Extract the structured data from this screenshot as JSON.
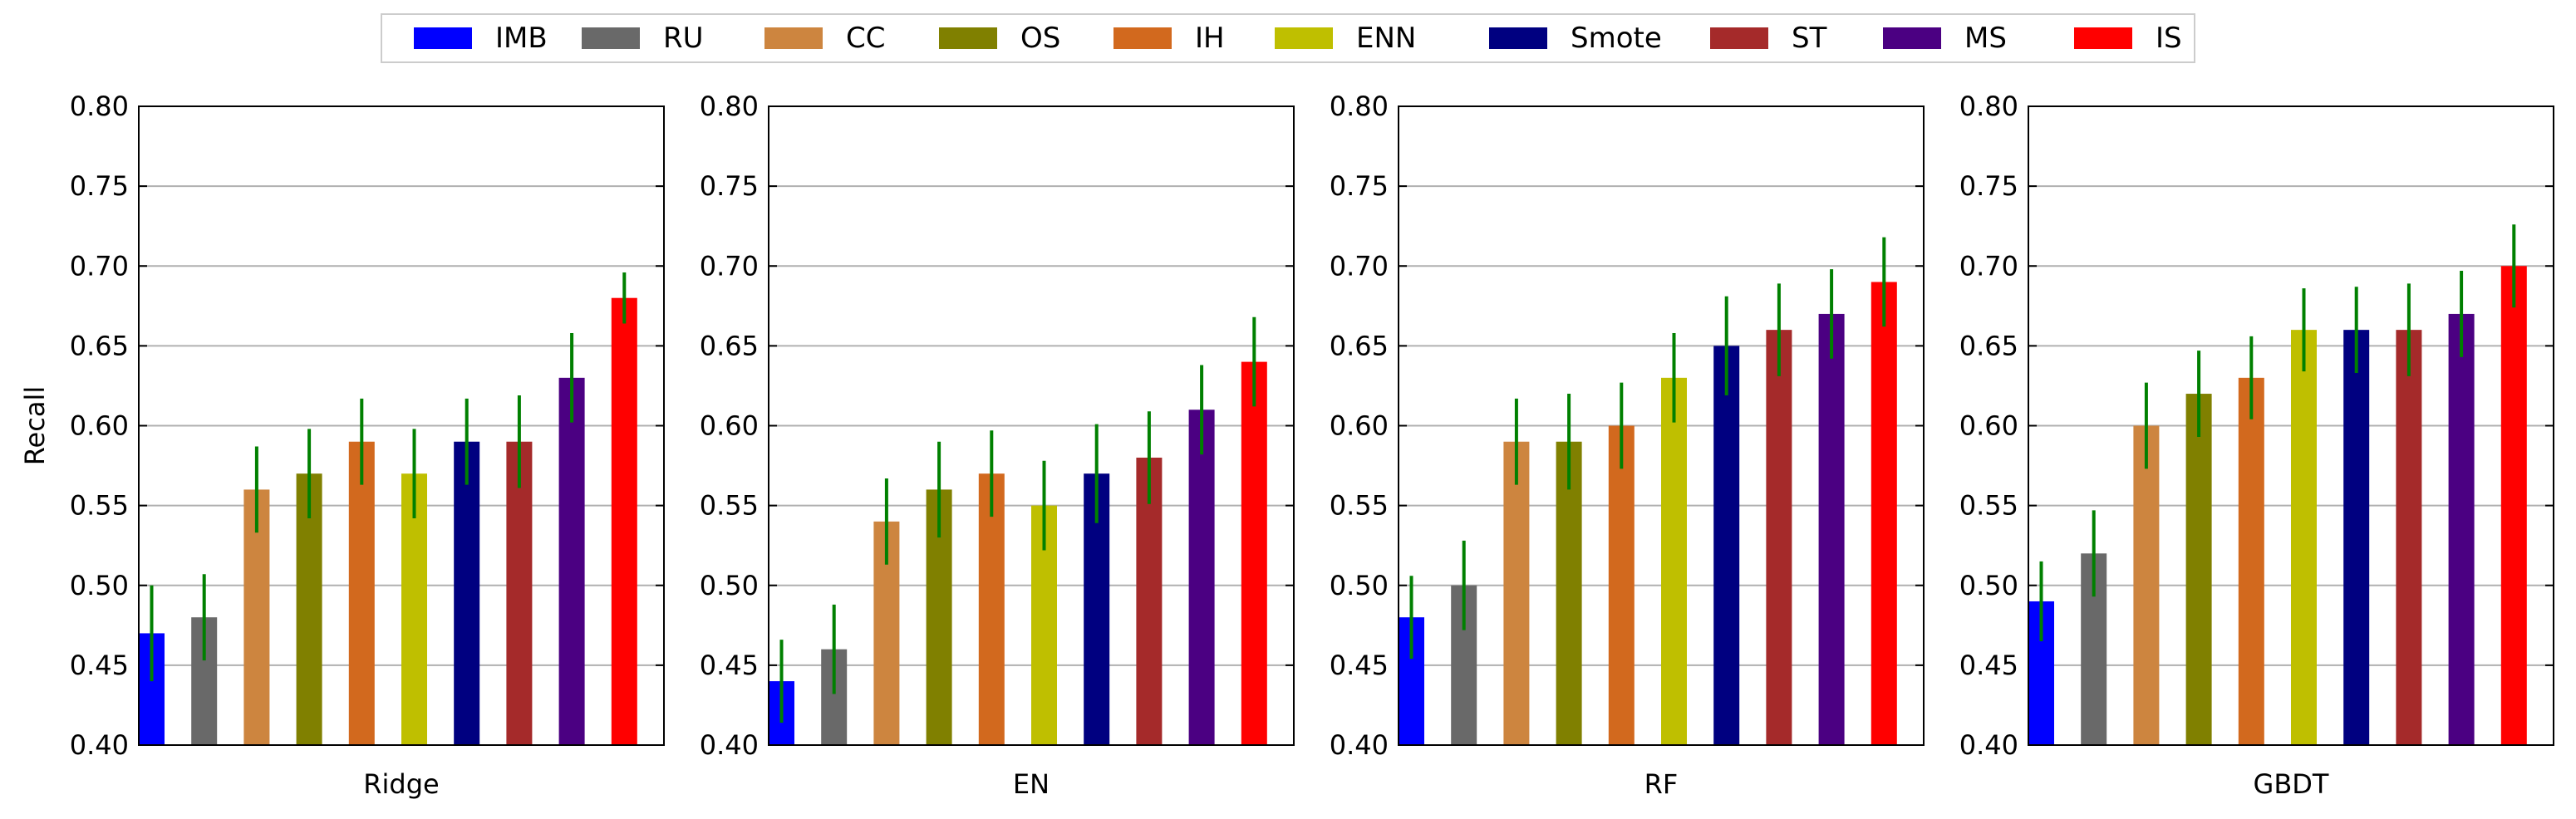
{
  "chart_data": [
    {
      "type": "bar",
      "xlabel": "Ridge",
      "ylabel": "Recall",
      "ylim": [
        0.4,
        0.8
      ],
      "yticks": [
        "0.40",
        "0.45",
        "0.50",
        "0.55",
        "0.60",
        "0.65",
        "0.70",
        "0.75",
        "0.80"
      ],
      "grid": "horizontal",
      "categories": [
        "IMB",
        "RU",
        "CC",
        "OS",
        "IH",
        "ENN",
        "Smote",
        "ST",
        "MS",
        "IS"
      ],
      "values": [
        0.47,
        0.48,
        0.56,
        0.57,
        0.59,
        0.57,
        0.59,
        0.59,
        0.63,
        0.68
      ],
      "errors": [
        0.03,
        0.027,
        0.027,
        0.028,
        0.027,
        0.028,
        0.027,
        0.029,
        0.028,
        0.016
      ]
    },
    {
      "type": "bar",
      "xlabel": "EN",
      "ylabel": "",
      "ylim": [
        0.4,
        0.8
      ],
      "yticks": [
        "0.40",
        "0.45",
        "0.50",
        "0.55",
        "0.60",
        "0.65",
        "0.70",
        "0.75",
        "0.80"
      ],
      "grid": "horizontal",
      "categories": [
        "IMB",
        "RU",
        "CC",
        "OS",
        "IH",
        "ENN",
        "Smote",
        "ST",
        "MS",
        "IS"
      ],
      "values": [
        0.44,
        0.46,
        0.54,
        0.56,
        0.57,
        0.55,
        0.57,
        0.58,
        0.61,
        0.64
      ],
      "errors": [
        0.026,
        0.028,
        0.027,
        0.03,
        0.027,
        0.028,
        0.031,
        0.029,
        0.028,
        0.028
      ]
    },
    {
      "type": "bar",
      "xlabel": "RF",
      "ylabel": "",
      "ylim": [
        0.4,
        0.8
      ],
      "yticks": [
        "0.40",
        "0.45",
        "0.50",
        "0.55",
        "0.60",
        "0.65",
        "0.70",
        "0.75",
        "0.80"
      ],
      "grid": "horizontal",
      "categories": [
        "IMB",
        "RU",
        "CC",
        "OS",
        "IH",
        "ENN",
        "Smote",
        "ST",
        "MS",
        "IS"
      ],
      "values": [
        0.48,
        0.5,
        0.59,
        0.59,
        0.6,
        0.63,
        0.65,
        0.66,
        0.67,
        0.69
      ],
      "errors": [
        0.026,
        0.028,
        0.027,
        0.03,
        0.027,
        0.028,
        0.031,
        0.029,
        0.028,
        0.028
      ]
    },
    {
      "type": "bar",
      "xlabel": "GBDT",
      "ylabel": "",
      "ylim": [
        0.4,
        0.8
      ],
      "yticks": [
        "0.40",
        "0.45",
        "0.50",
        "0.55",
        "0.60",
        "0.65",
        "0.70",
        "0.75",
        "0.80"
      ],
      "grid": "horizontal",
      "categories": [
        "IMB",
        "RU",
        "CC",
        "OS",
        "IH",
        "ENN",
        "Smote",
        "ST",
        "MS",
        "IS"
      ],
      "values": [
        0.49,
        0.52,
        0.6,
        0.62,
        0.63,
        0.66,
        0.66,
        0.66,
        0.67,
        0.7
      ],
      "errors": [
        0.025,
        0.027,
        0.027,
        0.027,
        0.026,
        0.026,
        0.027,
        0.029,
        0.027,
        0.026
      ]
    }
  ],
  "legend": {
    "placement": "top-center",
    "items": [
      {
        "label": "IMB",
        "color": "#0000ff"
      },
      {
        "label": "RU",
        "color": "#696969"
      },
      {
        "label": "CC",
        "color": "#cd853f"
      },
      {
        "label": "OS",
        "color": "#808000"
      },
      {
        "label": "IH",
        "color": "#d2691e"
      },
      {
        "label": "ENN",
        "color": "#bfbf00"
      },
      {
        "label": "Smote",
        "color": "#000080"
      },
      {
        "label": "ST",
        "color": "#a52a2a"
      },
      {
        "label": "MS",
        "color": "#4b0082"
      },
      {
        "label": "IS",
        "color": "#ff0000"
      }
    ]
  },
  "colors": {
    "error_bar": "#008000",
    "grid": "#b0b0b0",
    "axis": "#000000"
  }
}
